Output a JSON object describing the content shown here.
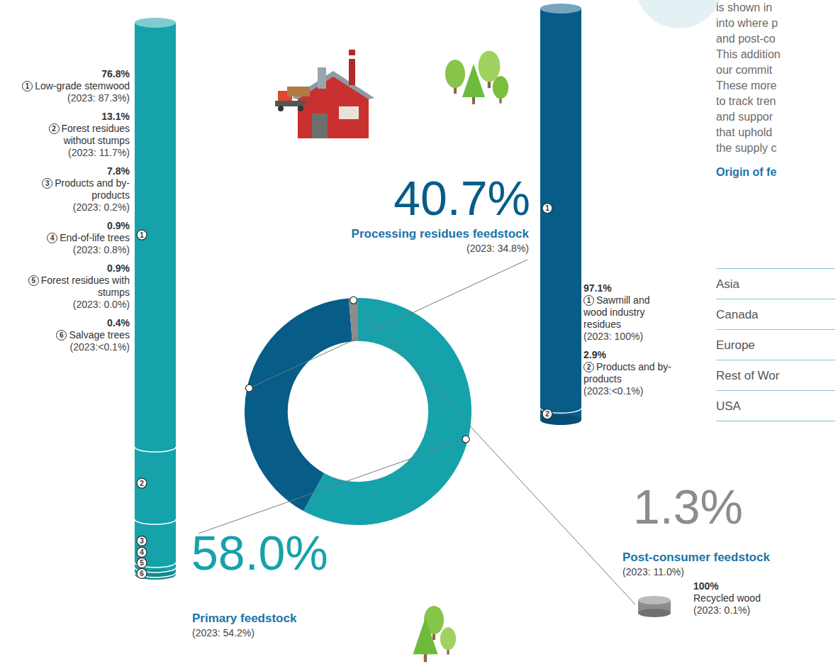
{
  "chart_data": {
    "type": "pie",
    "categories": [
      "Primary feedstock",
      "Processing residues feedstock",
      "Post-consumer feedstock"
    ],
    "values": [
      58.0,
      40.7,
      1.3
    ],
    "value_labels": [
      "58.0%",
      "40.7%",
      "1.3%"
    ],
    "notes": [
      "(2023: 54.2%)",
      "(2023: 34.8%)",
      "(2023: 11.0%)"
    ],
    "colors": [
      "#16a2aa",
      "#075c88",
      "#8c8c8c"
    ],
    "data_labels": true,
    "breakdowns": [
      {
        "type": "bar",
        "stacked": true,
        "color": "#16a2aa",
        "ids": [
          1,
          2,
          3,
          4,
          5,
          6
        ],
        "categories": [
          "Low-grade stemwood",
          "Forest residues without stumps",
          "Products and by-products",
          "End-of-life trees",
          "Forest residues with stumps",
          "Salvage trees"
        ],
        "values": [
          76.8,
          13.1,
          7.8,
          0.9,
          0.9,
          0.4
        ],
        "value_labels": [
          "76.8%",
          "13.1%",
          "7.8%",
          "0.9%",
          "0.9%",
          "0.4%"
        ],
        "notes": [
          "(2023: 87.3%)",
          "(2023: 11.7%)",
          "(2023: 0.2%)",
          "(2023: 0.8%)",
          "(2023: 0.0%)",
          "(2023:<0.1%)"
        ]
      },
      {
        "type": "bar",
        "stacked": true,
        "color": "#075c88",
        "ids": [
          1,
          2
        ],
        "categories": [
          "Sawmill and wood industry residues",
          "Products and by-products"
        ],
        "values": [
          97.1,
          2.9
        ],
        "value_labels": [
          "97.1%",
          "2.9%"
        ],
        "notes": [
          "(2023: 100%)",
          "(2023:<0.1%)"
        ]
      },
      {
        "type": "bar",
        "stacked": true,
        "color": "#8c8c8c",
        "categories": [
          "Recycled wood"
        ],
        "values": [
          100
        ],
        "value_labels": [
          "100%"
        ],
        "notes": [
          "(2023: 0.1%)"
        ]
      }
    ]
  },
  "text_panel": {
    "paragraph_lines": [
      "is shown in",
      "into where p",
      "and post-co",
      "This addition",
      "our commit",
      "These more",
      "to track tren",
      "and suppor",
      "that uphold",
      "the supply c"
    ],
    "table": {
      "title": "Origin of fe",
      "rows": [
        "Asia",
        "Canada",
        "Europe",
        "Rest of Wor",
        "USA"
      ]
    }
  }
}
